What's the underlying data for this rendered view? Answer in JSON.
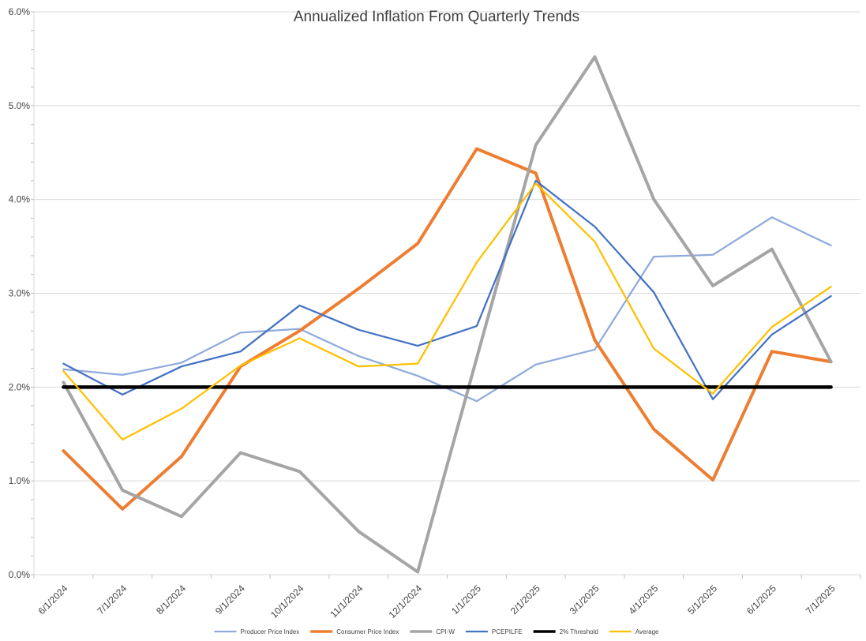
{
  "title": "Annualized Inflation From Quarterly Trends",
  "colors": {
    "background": "#FFFFFF",
    "gridline": "#D9D9D9",
    "axis_line": "#D9D9D9",
    "tick_mark": "#BFBFBF",
    "axis_text": "#444444",
    "title_text": "#404040"
  },
  "chart_data": {
    "type": "line",
    "title": "Annualized Inflation From Quarterly Trends",
    "xlabel": "",
    "ylabel": "",
    "ylim": [
      0,
      6
    ],
    "ytick_step": 1.0,
    "ytick_minor_step": 0.2,
    "ytick_labels": [
      "0.0%",
      "1.0%",
      "2.0%",
      "3.0%",
      "4.0%",
      "5.0%",
      "6.0%"
    ],
    "grid": "horizontal",
    "legend_position": "bottom",
    "categories": [
      "6/1/2024",
      "7/1/2024",
      "8/1/2024",
      "9/1/2024",
      "10/1/2024",
      "11/1/2024",
      "12/1/2024",
      "1/1/2025",
      "2/1/2025",
      "3/1/2025",
      "4/1/2025",
      "5/1/2025",
      "6/1/2025",
      "7/1/2025"
    ],
    "series": [
      {
        "name": "Producer Price Index",
        "color": "#8FAADC",
        "line_width": 2.25,
        "values": [
          2.19,
          2.13,
          2.26,
          2.58,
          2.62,
          2.33,
          2.12,
          1.85,
          2.24,
          2.4,
          3.39,
          3.41,
          3.81,
          3.51
        ]
      },
      {
        "name": "Consumer Price Index",
        "color": "#ED7D31",
        "line_width": 4,
        "values": [
          1.32,
          0.7,
          1.26,
          2.22,
          2.6,
          3.05,
          3.53,
          4.54,
          4.28,
          2.5,
          1.55,
          1.01,
          2.38,
          2.27
        ]
      },
      {
        "name": "CPI-W",
        "color": "#A5A5A5",
        "line_width": 4,
        "values": [
          2.05,
          0.9,
          0.62,
          1.3,
          1.1,
          0.46,
          0.03,
          2.31,
          4.58,
          5.52,
          4.0,
          3.08,
          3.47,
          2.27
        ]
      },
      {
        "name": "PCEPILFE",
        "color": "#4472C4",
        "line_width": 2.25,
        "values": [
          2.25,
          1.92,
          2.22,
          2.38,
          2.87,
          2.61,
          2.44,
          2.65,
          4.2,
          3.71,
          3.01,
          1.87,
          2.56,
          2.97
        ]
      },
      {
        "name": "2% Threshold",
        "color": "#000000",
        "line_width": 4.5,
        "values": [
          2.0,
          2.0,
          2.0,
          2.0,
          2.0,
          2.0,
          2.0,
          2.0,
          2.0,
          2.0,
          2.0,
          2.0,
          2.0,
          2.0
        ]
      },
      {
        "name": "Average",
        "color": "#FFC000",
        "line_width": 2.25,
        "values": [
          2.17,
          1.44,
          1.77,
          2.23,
          2.52,
          2.22,
          2.25,
          3.33,
          4.17,
          3.55,
          2.41,
          1.93,
          2.64,
          3.07
        ]
      }
    ]
  }
}
